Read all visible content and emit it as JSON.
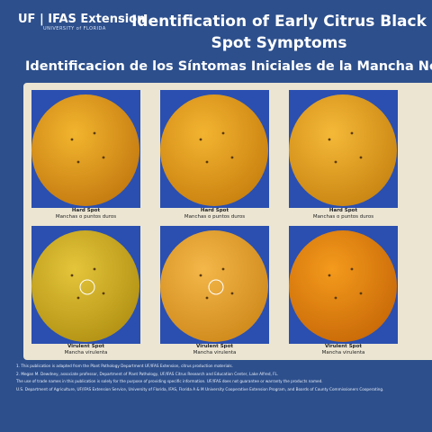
{
  "header": {
    "logo": "UF | IFAS Extension",
    "logo_sub": "UNIVERSITY of FLORIDA",
    "title": "Identification of Early Citrus Black Spot Symptoms",
    "subtitle": "Identificacion de los Síntomas Iniciales de la Mancha Negra de"
  },
  "panels": [
    {
      "caption": "Hard Spot",
      "caption_es": "Manchas o puntos duros"
    },
    {
      "caption": "Hard Spot",
      "caption_es": "Manchas o puntos duros"
    },
    {
      "caption": "Hard Spot",
      "caption_es": "Manchas o puntos duros"
    },
    {
      "caption": "Virulent Spot",
      "caption_es": "Mancha virulenta"
    },
    {
      "caption": "Virulent Spot",
      "caption_es": "Mancha virulenta"
    },
    {
      "caption": "Virulent Spot",
      "caption_es": "Mancha virulenta"
    }
  ],
  "footer": [
    "1. This publication is adapted from the Plant Pathology Department UF/IFAS Extension, citrus production materials.",
    "2. Megan M. Dewdney, associate professor, Department of Plant Pathology, UF/IFAS Citrus Research and Education Center, Lake Alfred, FL.",
    "The use of trade names in this publication is solely for the purpose of providing specific information. UF/IFAS does not guarantee or warranty the products named.",
    "U.S. Department of Agriculture, UF/IFAS Extension Service, University of Florida, IFAS, Florida A & M University Cooperative Extension Program, and Boards of County Commissioners Cooperating."
  ]
}
